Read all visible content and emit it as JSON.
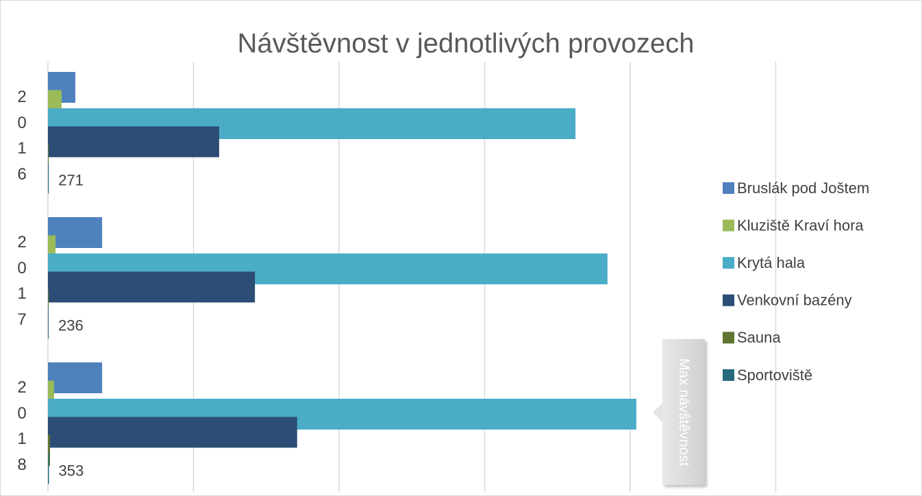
{
  "chart_data": {
    "type": "barh",
    "title": "Návštěvnost v jednotlivých provozech",
    "categories": [
      "2016",
      "2017",
      "2018"
    ],
    "series": [
      {
        "name": "Bruslák pod Joštem",
        "color": "#4f81bd",
        "values": [
          9400,
          18600,
          18600
        ]
      },
      {
        "name": "Kluziště Kraví hora",
        "color": "#9bbb59",
        "values": [
          4700,
          2600,
          2100
        ]
      },
      {
        "name": "Krytá hala",
        "color": "#4bacc6",
        "values": [
          181200,
          192200,
          202100
        ]
      },
      {
        "name": "Venkovní bazény",
        "color": "#2c4d75",
        "values": [
          58800,
          71100,
          85600
        ]
      },
      {
        "name": "Sauna",
        "color": "#5f7530",
        "values": [
          200,
          200,
          700
        ]
      },
      {
        "name": "Sportoviště",
        "color": "#276a7c",
        "values": [
          271,
          236,
          353
        ],
        "data_labels": true
      }
    ],
    "xlim": [
      0,
      250000
    ],
    "xticks": [
      0,
      50000,
      100000,
      150000,
      200000,
      250000
    ],
    "grid": true,
    "legend": "right",
    "annotation": "Max návštěvnost"
  }
}
